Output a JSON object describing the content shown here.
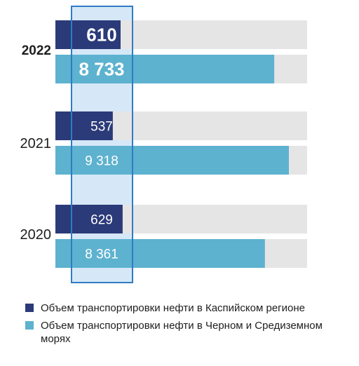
{
  "chart_data": {
    "type": "bar",
    "orientation": "horizontal",
    "categories": [
      "2022",
      "2021",
      "2020"
    ],
    "highlighted_category": "2022",
    "series": [
      {
        "name": "Объем транспортировки нефти в Каспийском регионе",
        "values": [
          610,
          537,
          629
        ],
        "labels": [
          "610",
          "537",
          "629"
        ],
        "color": "#2b3a78"
      },
      {
        "name": "Объем транспортировки нефти в Черном и Средиземном морях",
        "values": [
          8733,
          9318,
          8361
        ],
        "labels": [
          "8 733",
          "9 318",
          "8 361"
        ],
        "color": "#5db2cf"
      }
    ],
    "background_track_color": "#e5e5e5",
    "highlight_box_color": "#2f7cc4",
    "grid": false,
    "legend_position": "bottom"
  }
}
